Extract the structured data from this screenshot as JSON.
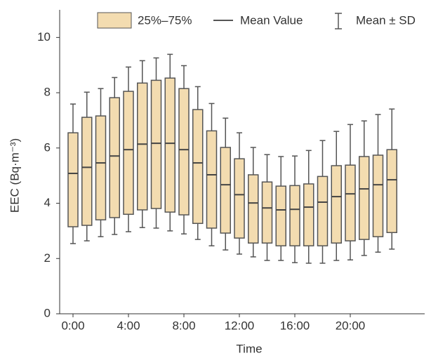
{
  "chart_data": {
    "type": "box",
    "xlabel": "Time",
    "ylabel": "EEC (Bq·m⁻³)",
    "categories": [
      "0:00",
      null,
      null,
      null,
      "4:00",
      null,
      null,
      null,
      "8:00",
      null,
      null,
      null,
      "12:00",
      null,
      null,
      null,
      "16:00",
      null,
      null,
      null,
      "20:00",
      null,
      null,
      null
    ],
    "q3": [
      6.55,
      7.11,
      7.16,
      7.82,
      8.05,
      8.35,
      8.45,
      8.53,
      8.15,
      7.39,
      6.62,
      6.02,
      5.61,
      5.03,
      4.77,
      4.62,
      4.64,
      4.7,
      4.97,
      5.36,
      5.38,
      5.69,
      5.74,
      5.94
    ],
    "q1": [
      3.15,
      3.2,
      3.4,
      3.48,
      3.6,
      3.76,
      3.81,
      3.68,
      3.58,
      3.27,
      3.1,
      2.92,
      2.74,
      2.56,
      2.56,
      2.46,
      2.46,
      2.46,
      2.46,
      2.56,
      2.64,
      2.69,
      2.79,
      2.94
    ],
    "mean": [
      5.08,
      5.3,
      5.46,
      5.71,
      5.94,
      6.14,
      6.17,
      6.17,
      5.94,
      5.46,
      5.03,
      4.67,
      4.31,
      4.01,
      3.83,
      3.76,
      3.78,
      3.86,
      4.04,
      4.24,
      4.34,
      4.52,
      4.67,
      4.85
    ],
    "upper": [
      7.59,
      8.02,
      8.15,
      8.55,
      8.93,
      9.16,
      9.26,
      9.39,
      8.98,
      8.22,
      7.61,
      7.08,
      6.55,
      6.02,
      5.76,
      5.69,
      5.71,
      5.91,
      6.27,
      6.6,
      6.85,
      6.98,
      7.21,
      7.41
    ],
    "lower": [
      2.54,
      2.64,
      2.79,
      2.87,
      2.97,
      3.12,
      3.1,
      3.0,
      2.89,
      2.69,
      2.46,
      2.31,
      2.16,
      2.06,
      1.93,
      1.93,
      1.85,
      1.83,
      1.83,
      1.93,
      1.95,
      2.11,
      2.23,
      2.34
    ],
    "color": "#f3dcb0",
    "legend": [
      "25%–75%",
      "Mean Value",
      "Mean ± SD"
    ],
    "ylim": [
      0,
      11
    ],
    "yticks": [
      0,
      2,
      4,
      6,
      8,
      10
    ]
  }
}
